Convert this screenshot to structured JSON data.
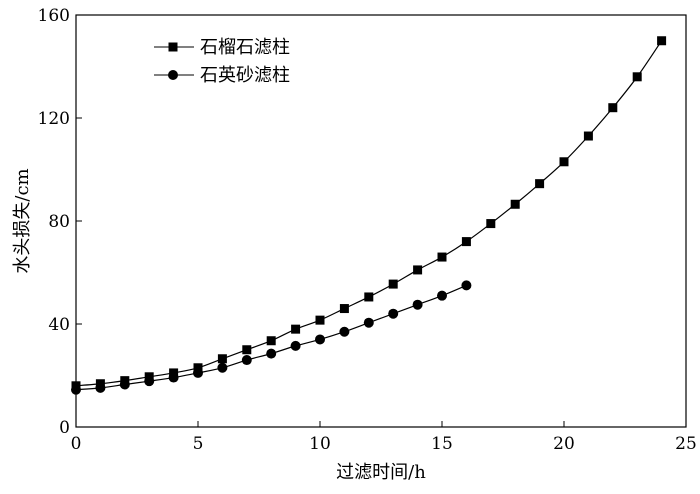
{
  "chart_data": {
    "type": "line",
    "xlabel": "过滤时间/h",
    "ylabel": "水头损失/cm",
    "xlim": [
      0,
      25
    ],
    "ylim": [
      0,
      160
    ],
    "xticks": [
      "0",
      "5",
      "10",
      "15",
      "20",
      "25"
    ],
    "yticks": [
      "0",
      "40",
      "80",
      "120",
      "160"
    ],
    "grid": false,
    "legend_position": "top-left",
    "series": [
      {
        "name": "石榴石滤柱",
        "marker": "square",
        "color": "#000000",
        "x": [
          0,
          1,
          2,
          3,
          4,
          5,
          6,
          7,
          8,
          9,
          10,
          11,
          12,
          13,
          14,
          15,
          16,
          17,
          18,
          19,
          20,
          21,
          22,
          23,
          24
        ],
        "y": [
          16,
          16.8,
          18,
          19.5,
          21,
          23,
          26.5,
          30,
          33.5,
          38,
          41.5,
          46,
          50.5,
          55.5,
          61,
          66,
          72,
          79,
          86.5,
          94.5,
          103,
          113,
          124,
          136,
          150
        ]
      },
      {
        "name": "石英砂滤柱",
        "marker": "circle",
        "color": "#000000",
        "x": [
          0,
          1,
          2,
          3,
          4,
          5,
          6,
          7,
          8,
          9,
          10,
          11,
          12,
          13,
          14,
          15,
          16
        ],
        "y": [
          14.5,
          15.2,
          16.5,
          17.8,
          19.2,
          21,
          23,
          26,
          28.5,
          31.5,
          34,
          37,
          40.5,
          44,
          47.5,
          51,
          55
        ]
      }
    ]
  }
}
